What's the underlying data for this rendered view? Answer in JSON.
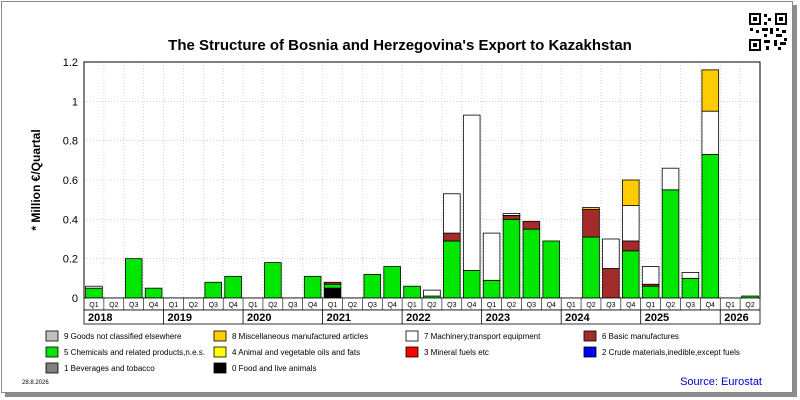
{
  "chart_data": {
    "type": "bar",
    "stacked": true,
    "title": "The Structure of Bosnia and Herzegovina's Export to Kazakhstan",
    "ylabel": "* Million €/Quartal",
    "ylim": [
      0,
      1.2
    ],
    "yticks": [
      "0",
      "0.2",
      "0.4",
      "0.6",
      "0.8",
      "1",
      "1.2"
    ],
    "grid": true,
    "quarter_labels": [
      "Q1",
      "Q2",
      "Q3",
      "Q4"
    ],
    "years": [
      "2018",
      "2019",
      "2020",
      "2021",
      "2022",
      "2023",
      "2024",
      "2025",
      "2026"
    ],
    "periods": [
      {
        "year": "2018",
        "q": "Q1"
      },
      {
        "year": "2018",
        "q": "Q2"
      },
      {
        "year": "2018",
        "q": "Q3"
      },
      {
        "year": "2018",
        "q": "Q4"
      },
      {
        "year": "2019",
        "q": "Q1"
      },
      {
        "year": "2019",
        "q": "Q2"
      },
      {
        "year": "2019",
        "q": "Q3"
      },
      {
        "year": "2019",
        "q": "Q4"
      },
      {
        "year": "2020",
        "q": "Q1"
      },
      {
        "year": "2020",
        "q": "Q2"
      },
      {
        "year": "2020",
        "q": "Q3"
      },
      {
        "year": "2020",
        "q": "Q4"
      },
      {
        "year": "2021",
        "q": "Q1"
      },
      {
        "year": "2021",
        "q": "Q2"
      },
      {
        "year": "2021",
        "q": "Q3"
      },
      {
        "year": "2021",
        "q": "Q4"
      },
      {
        "year": "2022",
        "q": "Q1"
      },
      {
        "year": "2022",
        "q": "Q2"
      },
      {
        "year": "2022",
        "q": "Q3"
      },
      {
        "year": "2022",
        "q": "Q4"
      },
      {
        "year": "2023",
        "q": "Q1"
      },
      {
        "year": "2023",
        "q": "Q2"
      },
      {
        "year": "2023",
        "q": "Q3"
      },
      {
        "year": "2023",
        "q": "Q4"
      },
      {
        "year": "2024",
        "q": "Q1"
      },
      {
        "year": "2024",
        "q": "Q2"
      },
      {
        "year": "2024",
        "q": "Q3"
      },
      {
        "year": "2024",
        "q": "Q4"
      },
      {
        "year": "2025",
        "q": "Q1"
      },
      {
        "year": "2025",
        "q": "Q2"
      },
      {
        "year": "2025",
        "q": "Q3"
      },
      {
        "year": "2025",
        "q": "Q4"
      },
      {
        "year": "2026",
        "q": "Q1"
      },
      {
        "year": "2026",
        "q": "Q2"
      }
    ],
    "series": [
      {
        "name": "0 Food and live animals",
        "color": "#000000",
        "values": [
          0,
          0,
          0,
          0,
          0,
          0,
          0,
          0,
          0,
          0,
          0,
          0,
          0.05,
          0,
          0,
          0,
          0,
          0,
          0,
          0,
          0,
          0,
          0,
          0,
          0,
          0,
          0,
          0,
          0,
          0,
          0,
          0,
          0,
          0
        ]
      },
      {
        "name": "1 Beverages and tobacco",
        "color": "#808080",
        "values": [
          0,
          0,
          0,
          0,
          0,
          0,
          0,
          0,
          0,
          0,
          0,
          0,
          0,
          0,
          0,
          0,
          0,
          0,
          0,
          0,
          0,
          0,
          0,
          0,
          0,
          0,
          0,
          0,
          0,
          0,
          0,
          0,
          0,
          0
        ]
      },
      {
        "name": "2 Crude materials,inedible,except fuels",
        "color": "#0000ff",
        "values": [
          0,
          0,
          0,
          0,
          0,
          0,
          0,
          0,
          0,
          0,
          0,
          0,
          0,
          0,
          0,
          0,
          0,
          0,
          0,
          0,
          0,
          0,
          0,
          0,
          0,
          0,
          0,
          0,
          0,
          0,
          0,
          0,
          0,
          0
        ]
      },
      {
        "name": "3 Mineral fuels etc",
        "color": "#ff0000",
        "values": [
          0,
          0,
          0,
          0,
          0,
          0,
          0,
          0,
          0,
          0,
          0,
          0,
          0,
          0,
          0,
          0,
          0,
          0,
          0,
          0,
          0,
          0,
          0,
          0,
          0,
          0,
          0,
          0,
          0,
          0,
          0,
          0,
          0,
          0
        ]
      },
      {
        "name": "5 Chemicals and related products,n.e.s.",
        "color": "#00e600",
        "values": [
          0.05,
          0,
          0.2,
          0.05,
          0,
          0,
          0.08,
          0.11,
          0,
          0.18,
          0,
          0.11,
          0.02,
          0,
          0.12,
          0.16,
          0.06,
          0.01,
          0.29,
          0.14,
          0.09,
          0.4,
          0.35,
          0.29,
          0,
          0.31,
          0,
          0.24,
          0.06,
          0.55,
          0.1,
          0.73,
          0,
          0.01
        ]
      },
      {
        "name": "6 Basic manufactures",
        "color": "#a52a2a",
        "values": [
          0,
          0,
          0,
          0,
          0,
          0,
          0,
          0,
          0,
          0,
          0,
          0,
          0.01,
          0,
          0,
          0,
          0,
          0,
          0.04,
          0,
          0,
          0.02,
          0.04,
          0,
          0,
          0.14,
          0.15,
          0.05,
          0.01,
          0,
          0,
          0,
          0,
          0
        ]
      },
      {
        "name": "7 Machinery,transport equipment",
        "color": "#ffffff",
        "values": [
          0.01,
          0,
          0,
          0,
          0,
          0,
          0,
          0,
          0,
          0,
          0,
          0,
          0,
          0,
          0,
          0,
          0,
          0.03,
          0.2,
          0.79,
          0.24,
          0.01,
          0,
          0,
          0,
          0,
          0.15,
          0.18,
          0.09,
          0.11,
          0.03,
          0.22,
          0,
          0
        ]
      },
      {
        "name": "8 Miscellaneous manufactured articles",
        "color": "#ffcc00",
        "values": [
          0,
          0,
          0,
          0,
          0,
          0,
          0,
          0,
          0,
          0,
          0,
          0,
          0,
          0,
          0,
          0,
          0,
          0,
          0,
          0,
          0,
          0,
          0,
          0,
          0,
          0.01,
          0,
          0.13,
          0,
          0,
          0,
          0.21,
          0,
          0
        ]
      },
      {
        "name": "9 Goods not classified elsewhere",
        "color": "#c0c0c0",
        "values": [
          0,
          0,
          0,
          0,
          0,
          0,
          0,
          0,
          0,
          0,
          0,
          0,
          0,
          0,
          0,
          0,
          0,
          0,
          0,
          0,
          0,
          0,
          0,
          0,
          0,
          0,
          0,
          0,
          0,
          0,
          0,
          0,
          0,
          0
        ]
      },
      {
        "name": "4 Animal and vegetable oils and fats",
        "color": "#ffff00",
        "values": [
          0,
          0,
          0,
          0,
          0,
          0,
          0,
          0,
          0,
          0,
          0,
          0,
          0,
          0,
          0,
          0,
          0,
          0,
          0,
          0,
          0,
          0,
          0,
          0,
          0,
          0,
          0,
          0,
          0,
          0,
          0,
          0,
          0,
          0
        ]
      }
    ],
    "legend": [
      {
        "name": "9 Goods not classified elsewhere",
        "color": "#c0c0c0"
      },
      {
        "name": "8 Miscellaneous manufactured articles",
        "color": "#ffcc00"
      },
      {
        "name": "7 Machinery,transport equipment",
        "color": "#ffffff"
      },
      {
        "name": "6 Basic manufactures",
        "color": "#a52a2a"
      },
      {
        "name": "5 Chemicals and related products,n.e.s.",
        "color": "#00e600"
      },
      {
        "name": "4 Animal and vegetable oils and fats",
        "color": "#ffff00"
      },
      {
        "name": "3 Mineral fuels etc",
        "color": "#ff0000"
      },
      {
        "name": "2 Crude materials,inedible,except fuels",
        "color": "#0000ff"
      },
      {
        "name": "1 Beverages and tobacco",
        "color": "#808080"
      },
      {
        "name": "0 Food and live animals",
        "color": "#000000"
      }
    ],
    "legend_placement": "bottom"
  },
  "footer": {
    "date": "28.8.2026",
    "source": "Source: Eurostat"
  },
  "qr_icon": "qr-code-icon"
}
